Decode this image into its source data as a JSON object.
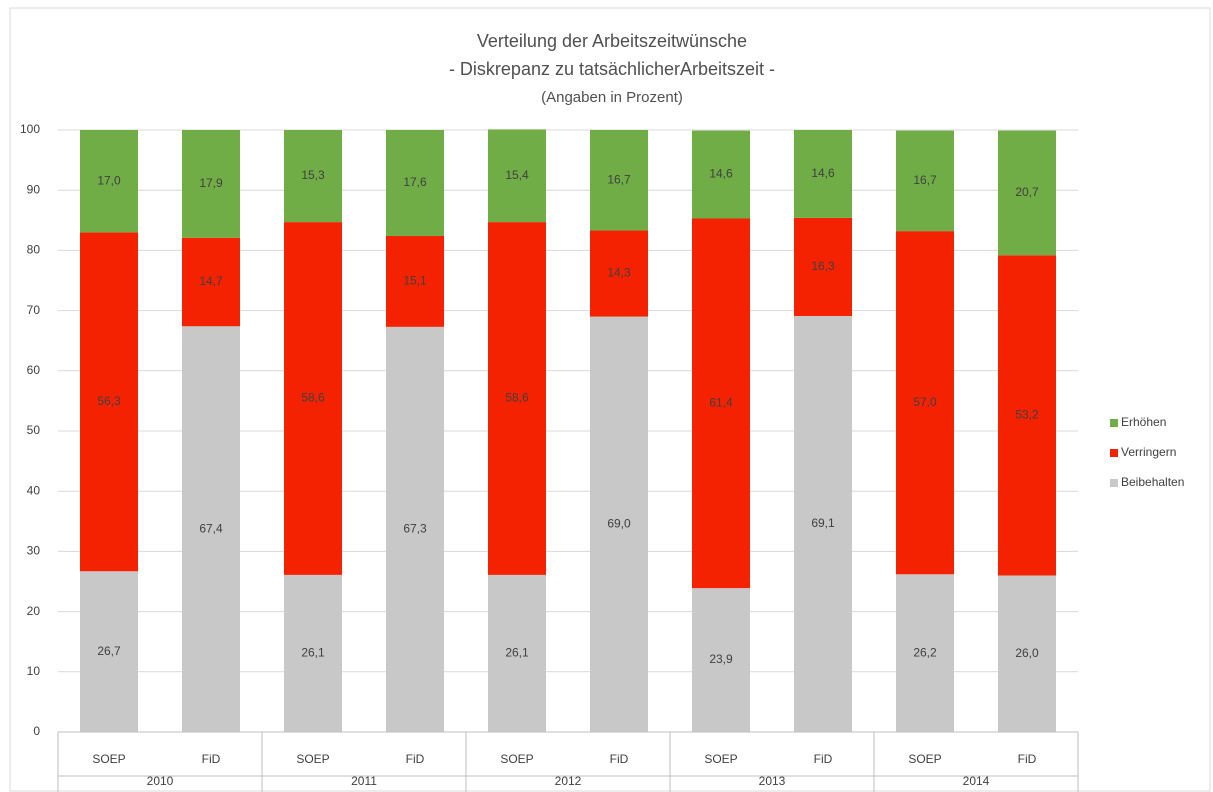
{
  "chart_data": {
    "type": "stacked_bar",
    "title_lines": [
      "Verteilung der Arbeitszeitwünsche",
      "- Diskrepanz zu tatsächlicherArbeitszeit -",
      "(Angaben in Prozent)"
    ],
    "categories": [
      "SOEP",
      "FiD",
      "SOEP",
      "FiD",
      "SOEP",
      "FiD",
      "SOEP",
      "FiD",
      "SOEP",
      "FiD"
    ],
    "groups": [
      "2010",
      "2011",
      "2012",
      "2013",
      "2014"
    ],
    "series": [
      {
        "name": "Beibehalten",
        "color": "#c8c8c8",
        "values": [
          26.7,
          67.4,
          26.1,
          67.3,
          26.1,
          69.0,
          23.9,
          69.1,
          26.2,
          26.0
        ],
        "value_labels": [
          "26,7",
          "67,4",
          "26,1",
          "67,3",
          "26,1",
          "69,0",
          "23,9",
          "69,1",
          "26,2",
          "26,0"
        ]
      },
      {
        "name": "Verringern",
        "color": "#f52200",
        "values": [
          56.3,
          14.7,
          58.6,
          15.1,
          58.6,
          14.3,
          61.4,
          16.3,
          57.0,
          53.2
        ],
        "value_labels": [
          "56,3",
          "14,7",
          "58,6",
          "15,1",
          "58,6",
          "14,3",
          "61,4",
          "16,3",
          "57,0",
          "53,2"
        ]
      },
      {
        "name": "Erhöhen",
        "color": "#70ad47",
        "values": [
          17.0,
          17.9,
          15.3,
          17.6,
          15.4,
          16.7,
          14.6,
          14.6,
          16.7,
          20.7
        ],
        "value_labels": [
          "17,0",
          "17,9",
          "15,3",
          "17,6",
          "15,4",
          "16,7",
          "14,6",
          "14,6",
          "16,7",
          "20,7"
        ]
      }
    ],
    "ylim": [
      0,
      100
    ],
    "yticks": [
      0,
      10,
      20,
      30,
      40,
      50,
      60,
      70,
      80,
      90,
      100
    ],
    "grid": true,
    "legend": "right"
  }
}
